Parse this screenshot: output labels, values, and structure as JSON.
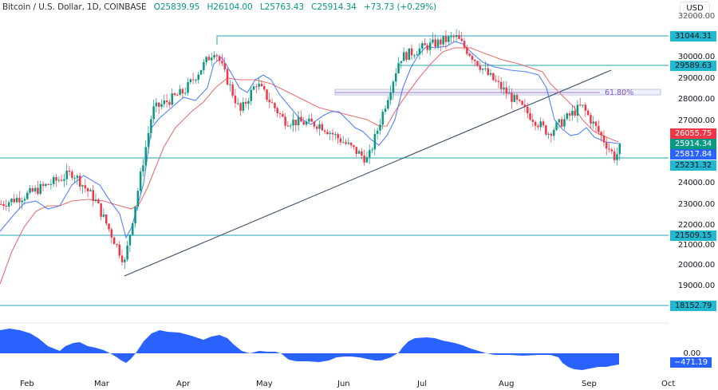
{
  "header": {
    "symbol": "Bitcoin / U.S. Dollar, 1D, COINBASE",
    "open": "O25839.95",
    "high": "H26104.00",
    "low": "L25763.43",
    "close": "C25914.34",
    "change": "+73.73 (+0.29%)",
    "currency_button": "USD"
  },
  "colors": {
    "up": "#089981",
    "down": "#f23645",
    "support_line": "#4cb8c4",
    "ema_fast": "#2962ff",
    "ema_slow": "#e57373",
    "trendline": "#3d4e6b",
    "fib": "#7e57c2",
    "oscillator": "#2962ff"
  },
  "y_axis": {
    "ticks": [
      "32000.00",
      "30000.00",
      "29000.00",
      "28000.00",
      "27000.00",
      "24000.00",
      "23000.00",
      "22000.00",
      "21000.00",
      "20000.00",
      "19000.00"
    ],
    "tags": [
      {
        "label": "31044.31",
        "bg": "#22b8cf",
        "color": "#131722"
      },
      {
        "label": "29589.63",
        "bg": "#22b8cf",
        "color": "#131722"
      },
      {
        "label": "26055.75",
        "bg": "#f23645",
        "color": "#ffffff"
      },
      {
        "label": "25914.34",
        "bg": "#089981",
        "color": "#ffffff"
      },
      {
        "label": "25817.84",
        "bg": "#2962ff",
        "color": "#ffffff"
      },
      {
        "label": "25231.32",
        "bg": "#22b8cf",
        "color": "#131722"
      },
      {
        "label": "21509.15",
        "bg": "#22b8cf",
        "color": "#131722"
      },
      {
        "label": "18152.79",
        "bg": "#22b8cf",
        "color": "#131722"
      }
    ],
    "osc_zero": "0.00",
    "osc_tag": "−471.19"
  },
  "x_axis": {
    "labels": [
      "Feb",
      "Mar",
      "Apr",
      "May",
      "Jun",
      "Jul",
      "Aug",
      "Sep",
      "Oct"
    ]
  },
  "annotations": {
    "fib_label": "61.80%"
  },
  "chart_data": {
    "type": "candlestick",
    "title": "Bitcoin / U.S. Dollar, 1D, COINBASE",
    "xlabel": "",
    "ylabel": "USD",
    "ylim": [
      18000,
      32200
    ],
    "grid": false,
    "x": [
      "Feb",
      "Mar",
      "Apr",
      "May",
      "Jun",
      "Jul",
      "Aug",
      "Sep",
      "Oct"
    ],
    "ohlc_last": {
      "open": 25839.95,
      "high": 26104.0,
      "low": 25763.43,
      "close": 25914.34,
      "change": 73.73,
      "change_pct": 0.29
    },
    "horizontal_levels": [
      31044.31,
      29589.63,
      25231.32,
      21509.15,
      18152.79
    ],
    "fibonacci": {
      "level": "61.80%",
      "price": 28400
    },
    "moving_averages": [
      {
        "name": "fast MA",
        "last": 25817.84,
        "color": "#2962ff"
      },
      {
        "name": "slow MA",
        "last": 26055.75,
        "color": "#e57373"
      }
    ],
    "approx_close_path": [
      {
        "date": "late Jan",
        "close": 23000
      },
      {
        "date": "Feb",
        "close": 23400
      },
      {
        "date": "mid Feb",
        "close": 24500
      },
      {
        "date": "late Feb",
        "close": 23200
      },
      {
        "date": "Mar 10",
        "close": 20200
      },
      {
        "date": "Mar 18",
        "close": 27500
      },
      {
        "date": "Apr",
        "close": 28400
      },
      {
        "date": "Apr 14",
        "close": 30400
      },
      {
        "date": "Apr 22",
        "close": 27400
      },
      {
        "date": "May",
        "close": 28800
      },
      {
        "date": "mid May",
        "close": 27000
      },
      {
        "date": "Jun",
        "close": 26800
      },
      {
        "date": "Jun 15",
        "close": 25100
      },
      {
        "date": "Jun 22",
        "close": 30000
      },
      {
        "date": "Jul",
        "close": 30500
      },
      {
        "date": "Jul 14",
        "close": 31000
      },
      {
        "date": "Aug",
        "close": 29200
      },
      {
        "date": "Aug 17",
        "close": 26400
      },
      {
        "date": "Aug 29",
        "close": 27700
      },
      {
        "date": "Sep 11",
        "close": 25200
      },
      {
        "date": "Sep 13",
        "close": 25914
      }
    ],
    "oscillator": {
      "zero": "0.00",
      "last": -471.19
    }
  }
}
